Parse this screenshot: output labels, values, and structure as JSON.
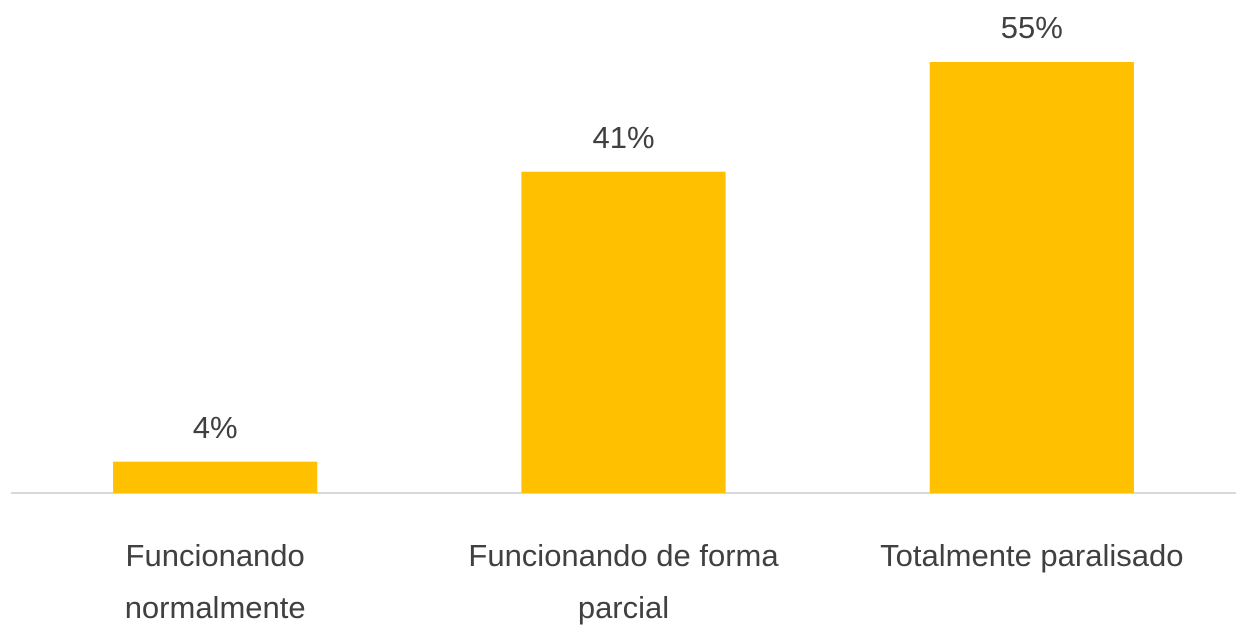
{
  "chart_data": {
    "type": "bar",
    "categories": [
      "Funcionando normalmente",
      "Funcionando de forma parcial",
      "Totalmente paralisado"
    ],
    "values": [
      4,
      41,
      55
    ],
    "value_labels": [
      "4%",
      "41%",
      "55%"
    ],
    "color": "#ffc000"
  }
}
